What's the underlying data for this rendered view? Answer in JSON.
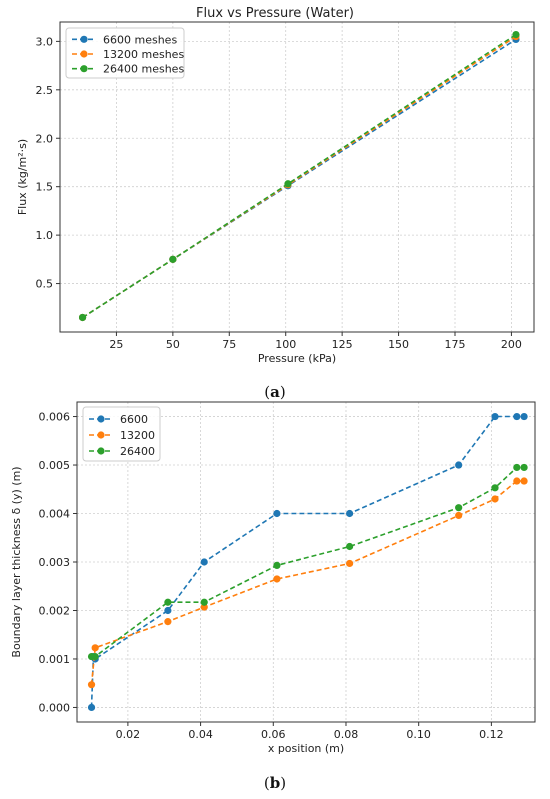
{
  "chart_data": [
    {
      "type": "line",
      "title": "Flux vs Pressure (Water)",
      "xlabel": "Pressure (kPa)",
      "ylabel": "Flux (kg/m²·s)",
      "xlim": [
        0,
        210
      ],
      "ylim": [
        0.0,
        3.2
      ],
      "xticks": [
        25,
        50,
        75,
        100,
        125,
        150,
        175,
        200
      ],
      "yticks": [
        0.5,
        1.0,
        1.5,
        2.0,
        2.5,
        3.0
      ],
      "xtick_labels": [
        "25",
        "50",
        "75",
        "100",
        "125",
        "150",
        "175",
        "200"
      ],
      "ytick_labels": [
        "0.5",
        "1.0",
        "1.5",
        "2.0",
        "2.5",
        "3.0"
      ],
      "grid": true,
      "legend_position": "top-left",
      "caption": "a",
      "series": [
        {
          "name": "6600 meshes",
          "color": "#1f77b4",
          "x": [
            10,
            50,
            101,
            202
          ],
          "y": [
            0.15,
            0.75,
            1.51,
            3.02
          ]
        },
        {
          "name": "13200 meshes",
          "color": "#ff7f0e",
          "x": [
            10,
            50,
            101,
            202
          ],
          "y": [
            0.15,
            0.75,
            1.52,
            3.05
          ]
        },
        {
          "name": "26400 meshes",
          "color": "#2ca02c",
          "x": [
            10,
            50,
            101,
            202
          ],
          "y": [
            0.15,
            0.75,
            1.53,
            3.07
          ]
        }
      ]
    },
    {
      "type": "line",
      "title": "",
      "xlabel": "x position (m)",
      "ylabel": "Boundary layer thickness δ (y) (m)",
      "xlim": [
        0.006,
        0.132
      ],
      "ylim": [
        -0.0003,
        0.0063
      ],
      "xticks": [
        0.02,
        0.04,
        0.06,
        0.08,
        0.1,
        0.12
      ],
      "yticks": [
        0.0,
        0.001,
        0.002,
        0.003,
        0.004,
        0.005,
        0.006
      ],
      "xtick_labels": [
        "0.02",
        "0.04",
        "0.06",
        "0.08",
        "0.10",
        "0.12"
      ],
      "ytick_labels": [
        "0.000",
        "0.001",
        "0.002",
        "0.003",
        "0.004",
        "0.005",
        "0.006"
      ],
      "grid": true,
      "legend_position": "top-left",
      "caption": "b",
      "series": [
        {
          "name": "6600",
          "color": "#1f77b4",
          "x": [
            0.01,
            0.0105,
            0.011,
            0.031,
            0.041,
            0.061,
            0.081,
            0.111,
            0.121,
            0.127,
            0.129
          ],
          "y": [
            0.0,
            0.00105,
            0.001,
            0.002,
            0.003,
            0.004,
            0.004,
            0.005,
            0.006,
            0.006,
            0.006
          ]
        },
        {
          "name": "13200",
          "color": "#ff7f0e",
          "x": [
            0.01,
            0.011,
            0.031,
            0.041,
            0.061,
            0.081,
            0.111,
            0.121,
            0.127,
            0.129
          ],
          "y": [
            0.00047,
            0.00123,
            0.00177,
            0.00207,
            0.00265,
            0.00297,
            0.00396,
            0.0043,
            0.00467,
            0.00467
          ]
        },
        {
          "name": "26400",
          "color": "#2ca02c",
          "x": [
            0.01,
            0.011,
            0.031,
            0.041,
            0.061,
            0.081,
            0.111,
            0.121,
            0.127,
            0.129
          ],
          "y": [
            0.00105,
            0.00105,
            0.00217,
            0.00217,
            0.00293,
            0.00332,
            0.00412,
            0.00453,
            0.00495,
            0.00495
          ]
        }
      ]
    }
  ]
}
